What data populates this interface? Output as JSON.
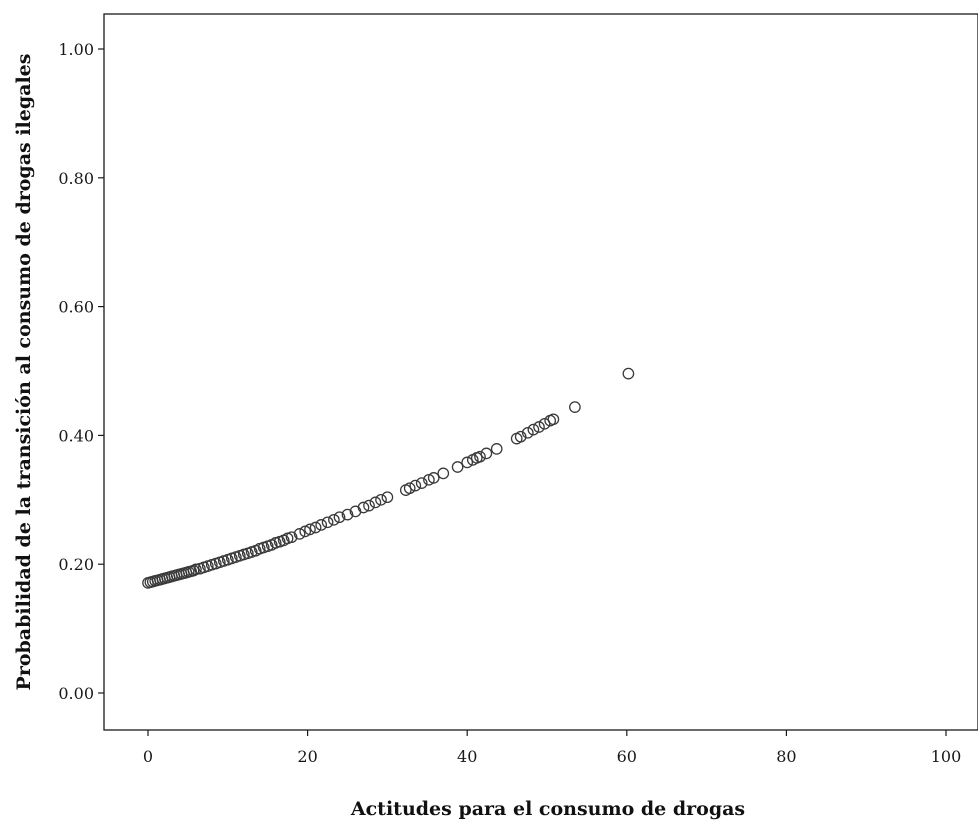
{
  "chart_data": {
    "type": "scatter",
    "title": "",
    "xlabel": "Actitudes para el consumo de drogas",
    "ylabel": "Probabilidad de la transición al consumo de drogas ilegales",
    "xlim": [
      0,
      100
    ],
    "ylim": [
      0,
      1
    ],
    "x_ticks": [
      0,
      20,
      40,
      60,
      80,
      100
    ],
    "x_tick_labels": [
      "0",
      "20",
      "40",
      "60",
      "80",
      "100"
    ],
    "y_ticks": [
      0,
      0.2,
      0.4,
      0.6,
      0.8,
      1.0
    ],
    "y_tick_labels": [
      "0.00",
      "0.20",
      "0.40",
      "0.60",
      "0.80",
      "1.00"
    ],
    "grid": false,
    "legend": "none",
    "marker": "hollow-circle",
    "marker_color": "#3a3a3a",
    "series": [
      {
        "points": [
          [
            0,
            0.171
          ],
          [
            0.3,
            0.172
          ],
          [
            0.6,
            0.173
          ],
          [
            0.9,
            0.174
          ],
          [
            1.2,
            0.175
          ],
          [
            1.5,
            0.176
          ],
          [
            1.8,
            0.177
          ],
          [
            2.1,
            0.178
          ],
          [
            2.4,
            0.179
          ],
          [
            2.7,
            0.18
          ],
          [
            3.0,
            0.181
          ],
          [
            3.3,
            0.182
          ],
          [
            3.6,
            0.183
          ],
          [
            3.9,
            0.184
          ],
          [
            4.2,
            0.185
          ],
          [
            4.5,
            0.186
          ],
          [
            4.8,
            0.187
          ],
          [
            5.1,
            0.188
          ],
          [
            5.4,
            0.189
          ],
          [
            5.7,
            0.19
          ],
          [
            6.0,
            0.192
          ],
          [
            6.5,
            0.193
          ],
          [
            7.0,
            0.195
          ],
          [
            7.5,
            0.197
          ],
          [
            8.0,
            0.199
          ],
          [
            8.5,
            0.201
          ],
          [
            9.0,
            0.203
          ],
          [
            9.5,
            0.205
          ],
          [
            10.0,
            0.207
          ],
          [
            10.5,
            0.209
          ],
          [
            11.0,
            0.211
          ],
          [
            11.5,
            0.213
          ],
          [
            12.0,
            0.215
          ],
          [
            12.5,
            0.217
          ],
          [
            13.0,
            0.219
          ],
          [
            13.5,
            0.221
          ],
          [
            14.0,
            0.224
          ],
          [
            14.5,
            0.226
          ],
          [
            15.0,
            0.228
          ],
          [
            15.5,
            0.23
          ],
          [
            16.0,
            0.233
          ],
          [
            16.5,
            0.235
          ],
          [
            17.0,
            0.237
          ],
          [
            17.5,
            0.24
          ],
          [
            18.0,
            0.242
          ],
          [
            19.0,
            0.247
          ],
          [
            19.7,
            0.251
          ],
          [
            20.3,
            0.254
          ],
          [
            21.0,
            0.257
          ],
          [
            21.7,
            0.261
          ],
          [
            22.5,
            0.265
          ],
          [
            23.3,
            0.269
          ],
          [
            24.0,
            0.273
          ],
          [
            25.0,
            0.277
          ],
          [
            26.0,
            0.282
          ],
          [
            27.0,
            0.288
          ],
          [
            27.7,
            0.291
          ],
          [
            28.5,
            0.296
          ],
          [
            29.2,
            0.3
          ],
          [
            30.0,
            0.304
          ],
          [
            32.3,
            0.315
          ],
          [
            32.8,
            0.318
          ],
          [
            33.5,
            0.322
          ],
          [
            34.3,
            0.326
          ],
          [
            35.2,
            0.331
          ],
          [
            35.8,
            0.334
          ],
          [
            37.0,
            0.341
          ],
          [
            38.8,
            0.351
          ],
          [
            40.0,
            0.358
          ],
          [
            40.7,
            0.362
          ],
          [
            41.2,
            0.365
          ],
          [
            41.6,
            0.367
          ],
          [
            42.4,
            0.372
          ],
          [
            43.7,
            0.379
          ],
          [
            46.2,
            0.395
          ],
          [
            46.7,
            0.398
          ],
          [
            47.6,
            0.404
          ],
          [
            48.3,
            0.409
          ],
          [
            49.0,
            0.413
          ],
          [
            49.7,
            0.418
          ],
          [
            50.4,
            0.423
          ],
          [
            50.8,
            0.425
          ],
          [
            53.5,
            0.444
          ],
          [
            60.2,
            0.496
          ]
        ]
      }
    ]
  }
}
